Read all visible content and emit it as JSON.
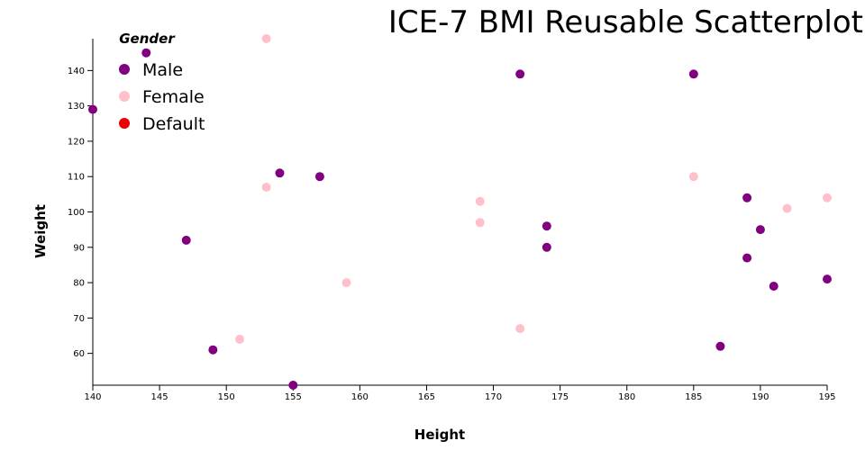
{
  "chart_data": {
    "type": "scatter",
    "title": "ICE-7 BMI Reusable Scatterplot",
    "xlabel": "Height",
    "ylabel": "Weight",
    "xlim": [
      140,
      195
    ],
    "ylim": [
      51,
      149
    ],
    "x_ticks": [
      140,
      145,
      150,
      155,
      160,
      165,
      170,
      175,
      180,
      185,
      190,
      195
    ],
    "y_ticks": [
      60,
      70,
      80,
      90,
      100,
      110,
      120,
      130,
      140
    ],
    "legend": {
      "title": "Gender",
      "placement": "top-left",
      "entries": [
        {
          "label": "Male",
          "color": "#800080"
        },
        {
          "label": "Female",
          "color": "#ffc0cb"
        },
        {
          "label": "Default",
          "color": "#ee0000"
        }
      ]
    },
    "series": [
      {
        "name": "Male",
        "color": "#800080",
        "points": [
          [
            140,
            129
          ],
          [
            144,
            145
          ],
          [
            147,
            92
          ],
          [
            149,
            61
          ],
          [
            154,
            111
          ],
          [
            155,
            51
          ],
          [
            157,
            110
          ],
          [
            172,
            139
          ],
          [
            174,
            96
          ],
          [
            174,
            90
          ],
          [
            185,
            139
          ],
          [
            187,
            62
          ],
          [
            189,
            104
          ],
          [
            189,
            87
          ],
          [
            190,
            95
          ],
          [
            191,
            79
          ],
          [
            195,
            81
          ]
        ]
      },
      {
        "name": "Female",
        "color": "#ffc0cb",
        "points": [
          [
            151,
            64
          ],
          [
            153,
            149
          ],
          [
            153,
            107
          ],
          [
            159,
            80
          ],
          [
            169,
            103
          ],
          [
            169,
            97
          ],
          [
            172,
            67
          ],
          [
            185,
            110
          ],
          [
            192,
            101
          ],
          [
            195,
            104
          ]
        ]
      }
    ]
  }
}
